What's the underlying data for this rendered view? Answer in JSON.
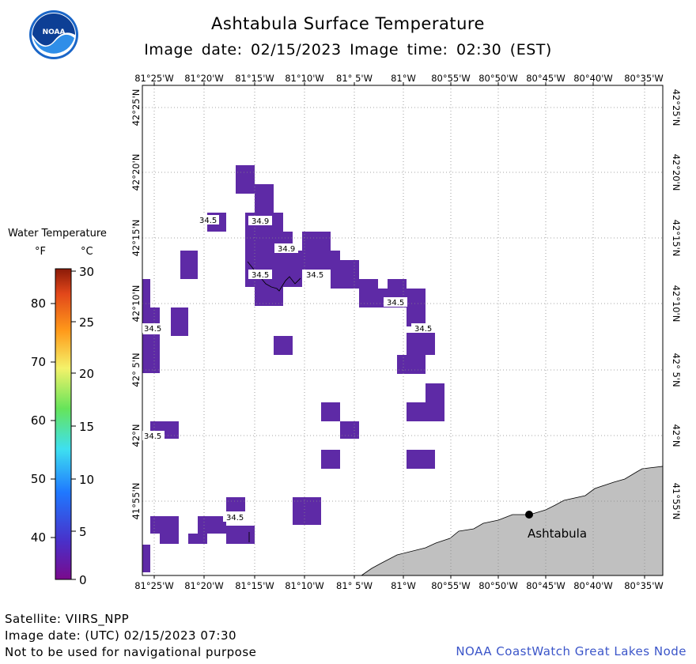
{
  "header": {
    "title": "Ashtabula Surface Temperature",
    "subtitle": "Image date: 02/15/2023     Image time: 02:30 (EST)"
  },
  "logo": {
    "text": "NOAA",
    "icon": "noaa-logo-icon"
  },
  "legend": {
    "title": "Water Temperature",
    "unit_f": "°F",
    "unit_c": "°C",
    "f_ticks": [
      "80",
      "70",
      "60",
      "50",
      "40"
    ],
    "c_ticks": [
      "30",
      "25",
      "20",
      "15",
      "10",
      "5",
      "0"
    ],
    "colors": [
      "#ffffff"
    ]
  },
  "map": {
    "top_lon_labels": [
      "81°25'W",
      "81°20'W",
      "81°15'W",
      "81°10'W",
      "81° 5'W",
      "81°W",
      "80°55'W",
      "80°50'W",
      "80°45'W",
      "80°40'W",
      "80°35'W"
    ],
    "bottom_lon_labels": [
      "81°25'W",
      "81°20'W",
      "81°15'W",
      "81°10'W",
      "81° 5'W",
      "81°W",
      "80°55'W",
      "80°50'W",
      "80°45'W",
      "80°40'W",
      "80°35'W"
    ],
    "lat_labels": [
      "42°25'N",
      "42°20'N",
      "42°15'N",
      "42°10'N",
      "42° 5'N",
      "42°N",
      "41°55'N"
    ],
    "water_color": "#5e2aa6",
    "land_color": "#c0c0c0",
    "temp_labels": [
      "34.5",
      "34.9",
      "34.9",
      "34.5",
      "34.5",
      "34.5",
      "34.5",
      "34.5",
      "34.5",
      "34.5"
    ],
    "city": {
      "name": "Ashtabula",
      "icon": "city-marker-icon"
    }
  },
  "footer": {
    "satellite": "Satellite: VIIRS_NPP",
    "utc_date": "Image date: (UTC) 02/15/2023  07:30",
    "disclaimer": "Not to be used for navigational purpose",
    "credit": "NOAA CoastWatch Great Lakes Node"
  }
}
